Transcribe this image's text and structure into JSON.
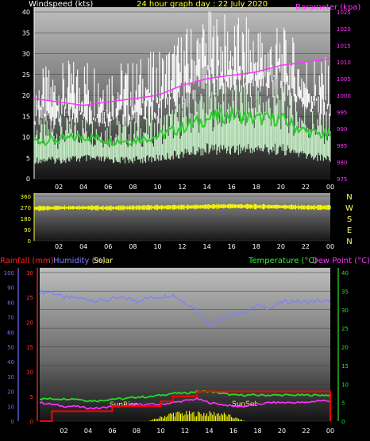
{
  "header": {
    "wind_title": "Windspeed (kts)",
    "graph_title": "24 hour graph day : 22 July 2020",
    "baro_title": "Barometer (kpa)"
  },
  "labels": {
    "rainfall": "Rainfall (mm)",
    "humidity": "Humidity (%)",
    "solar": "Solar",
    "temperature": "Temperature (°C)",
    "dewpoint": "Dew Point (°C)",
    "sunrise": "SunRise",
    "sunset": "SunSet"
  },
  "x_ticks": [
    "02",
    "04",
    "06",
    "08",
    "10",
    "12",
    "14",
    "16",
    "18",
    "20",
    "22",
    "00"
  ],
  "wind_axis": {
    "ylim": [
      0,
      40
    ],
    "ticks": [
      "0",
      "5",
      "10",
      "15",
      "20",
      "25",
      "30",
      "35",
      "40"
    ]
  },
  "baro_axis": {
    "ylim": [
      975,
      1025
    ],
    "ticks": [
      "975",
      "980",
      "985",
      "990",
      "995",
      "1000",
      "1005",
      "1010",
      "1015",
      "1020",
      "1025"
    ]
  },
  "dir_axis": {
    "ylim": [
      0,
      360
    ],
    "ticks": [
      "0",
      "90",
      "180",
      "270",
      "360"
    ],
    "compass": [
      "N",
      "W",
      "S",
      "E",
      "N"
    ]
  },
  "rain_axis": {
    "ylim": [
      0,
      30
    ],
    "ticks": [
      "0",
      "5",
      "10",
      "15",
      "20",
      "25",
      "30"
    ]
  },
  "hum_axis": {
    "ylim": [
      0,
      100
    ],
    "ticks": [
      "0",
      "10",
      "20",
      "30",
      "40",
      "50",
      "60",
      "70",
      "80",
      "90",
      "100"
    ]
  },
  "temp_axis": {
    "ylim": [
      0,
      40
    ],
    "ticks": [
      "0",
      "5",
      "10",
      "15",
      "20",
      "25",
      "30",
      "35",
      "40"
    ]
  },
  "colors": {
    "gust": "#ffffff",
    "wind": "#c8f0c8",
    "wind_avg": "#2ecc2e",
    "baro": "#ff33ff",
    "direction": "#ffff00",
    "rain": "#ff0000",
    "humidity": "#7f7fff",
    "solar": "#ffff00",
    "temperature": "#22dd22",
    "dewpoint": "#ff33ff",
    "rain_axis": "#ff3333",
    "hum_axis": "#7070ff",
    "temp_axis": "#33dd33",
    "compass": "#ffff66"
  },
  "chart_data": [
    {
      "type": "line",
      "x": [
        0,
        2,
        4,
        6,
        8,
        10,
        12,
        14,
        16,
        18,
        20,
        22,
        24
      ],
      "series": [
        {
          "name": "Barometer (kpa)",
          "values": [
            999,
            998,
            997,
            998,
            999,
            1000,
            1003,
            1005,
            1006,
            1007,
            1009,
            1010,
            1011
          ]
        },
        {
          "values": [
            22,
            23,
            25,
            24,
            24,
            26,
            30,
            34,
            33,
            32,
            31,
            26,
            24
          ]
        },
        {
          "values": [
            12,
            12,
            13,
            12,
            12,
            13,
            16,
            19,
            19,
            19,
            19,
            15,
            13
          ]
        },
        {
          "values": [
            9,
            9,
            10,
            9,
            9,
            10,
            12,
            14,
            15,
            14,
            14,
            11,
            10
          ]
        }
      ]
    },
    {
      "type": "line",
      "x": [
        0,
        2,
        4,
        6,
        8,
        10,
        12,
        14,
        16,
        18,
        20,
        22,
        24
      ],
      "series": [
        {
          "values": [
            262,
            267,
            268,
            265,
            268,
            270,
            272,
            276,
            280,
            276,
            275,
            270,
            270
          ]
        }
      ]
    },
    {
      "type": "line",
      "x": [
        0,
        1,
        2,
        3,
        4,
        5,
        6,
        7,
        8,
        9,
        10,
        11,
        12,
        13,
        14,
        15,
        16,
        17,
        18,
        19,
        20,
        21,
        22,
        23,
        24
      ],
      "series": [
        {
          "name": "Humidity (%)",
          "values": [
            87,
            87,
            83,
            83,
            82,
            81,
            82,
            83,
            81,
            83,
            84,
            85,
            80,
            75,
            65,
            68,
            72,
            73,
            78,
            76,
            80,
            81,
            80,
            81,
            80
          ]
        },
        {
          "name": "Temperature (°C)",
          "values": [
            6,
            6,
            6,
            6,
            5.5,
            5.5,
            6,
            6,
            6.5,
            6.5,
            7,
            7.5,
            7.5,
            8,
            8,
            7.5,
            7,
            7,
            7,
            7,
            7,
            7,
            7,
            7,
            7
          ]
        },
        {
          "name": "Dew Point (°C)",
          "values": [
            5,
            4.5,
            4,
            4,
            3.5,
            3.5,
            4,
            4,
            4.5,
            4.5,
            4.5,
            5,
            5.5,
            6,
            5,
            4.5,
            4,
            4,
            4.5,
            5,
            5,
            5,
            5,
            5.5,
            5.5
          ]
        },
        {
          "name": "Rainfall (mm)",
          "values": [
            0,
            2,
            2,
            2,
            2,
            2,
            3,
            3,
            3,
            3,
            4,
            5,
            5,
            6,
            6,
            6,
            6,
            6,
            6,
            6,
            6,
            6,
            6,
            6,
            0
          ]
        },
        {
          "name": "Solar",
          "values": [
            0,
            0,
            0,
            0,
            0,
            0,
            0,
            0,
            0,
            0,
            1,
            2,
            2,
            2,
            2,
            2,
            1,
            0,
            0,
            0,
            0,
            0,
            0,
            0,
            0
          ]
        }
      ]
    }
  ]
}
